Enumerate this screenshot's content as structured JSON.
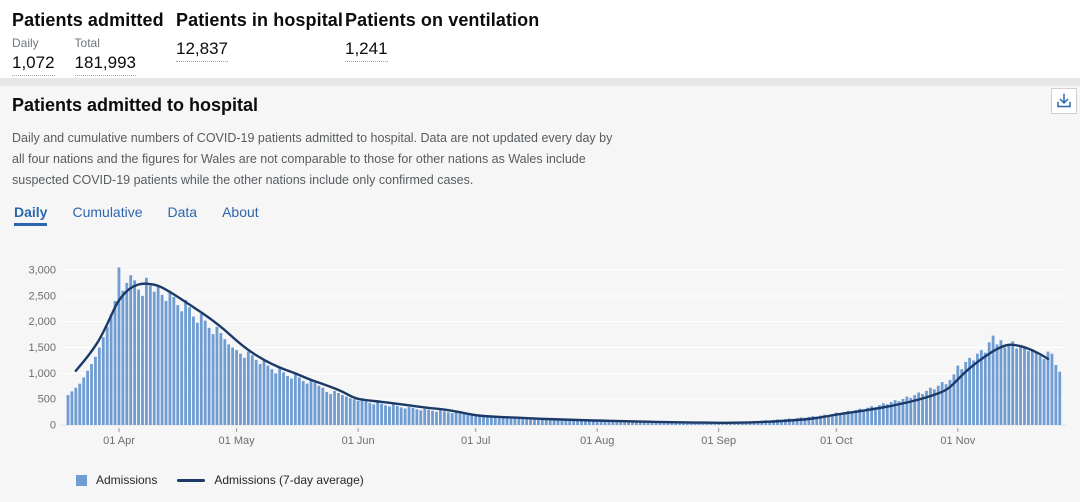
{
  "metrics": {
    "admitted": {
      "title": "Patients admitted",
      "daily_label": "Daily",
      "daily_value": "1,072",
      "total_label": "Total",
      "total_value": "181,993"
    },
    "in_hospital": {
      "title": "Patients in hospital",
      "value": "12,837"
    },
    "ventilation": {
      "title": "Patients on ventilation",
      "value": "1,241"
    }
  },
  "card": {
    "title": "Patients admitted to hospital",
    "description_lines": [
      "Daily and cumulative numbers of COVID-19 patients admitted to hospital. Data are not updated every day by",
      "all four nations and the figures for Wales are not comparable to those for other nations as Wales include",
      "suspected COVID-19 patients while the other nations include only confirmed cases."
    ],
    "tabs": {
      "daily": "Daily",
      "cumulative": "Cumulative",
      "data": "Data",
      "about": "About"
    },
    "download_icon": "download-icon"
  },
  "legend": {
    "admissions": "Admissions",
    "average": "Admissions (7-day average)"
  },
  "colors": {
    "accent_blue": "#2c66ad",
    "bar": "#6f9cd3",
    "line": "#1c3a67",
    "axis_text": "#6e6e6e",
    "grid": "#ffffff",
    "baseline": "#e3e3e4",
    "tick": "#9a9a9a"
  },
  "chart_data": {
    "type": "bar",
    "title": "Patients admitted to hospital (Daily)",
    "start_date": "2020-03-19",
    "end_date": "2020-11-27",
    "ylim": [
      0,
      3000
    ],
    "y_ticks": [
      0,
      500,
      1000,
      1500,
      2000,
      2500,
      3000
    ],
    "y_tick_labels": [
      "0",
      "500",
      "1,000",
      "1,500",
      "2,000",
      "2,500",
      "3,000"
    ],
    "x_ticks": [
      {
        "label": "01 Apr",
        "day": 13
      },
      {
        "label": "01 May",
        "day": 43
      },
      {
        "label": "01 Jun",
        "day": 74
      },
      {
        "label": "01 Jul",
        "day": 104
      },
      {
        "label": "01 Aug",
        "day": 135
      },
      {
        "label": "01 Sep",
        "day": 166
      },
      {
        "label": "01 Oct",
        "day": 196
      },
      {
        "label": "01 Nov",
        "day": 227
      }
    ],
    "series": [
      {
        "name": "Admissions",
        "type": "bar",
        "values": [
          580,
          650,
          720,
          800,
          920,
          1050,
          1180,
          1320,
          1500,
          1700,
          1900,
          2150,
          2400,
          3050,
          2600,
          2750,
          2900,
          2800,
          2620,
          2500,
          2850,
          2700,
          2580,
          2700,
          2520,
          2400,
          2600,
          2480,
          2320,
          2200,
          2420,
          2280,
          2100,
          1980,
          2150,
          2020,
          1880,
          1760,
          1900,
          1780,
          1660,
          1560,
          1500,
          1450,
          1380,
          1300,
          1420,
          1350,
          1260,
          1180,
          1250,
          1150,
          1080,
          1000,
          1100,
          1020,
          950,
          900,
          980,
          920,
          850,
          800,
          870,
          820,
          760,
          720,
          640,
          600,
          660,
          620,
          580,
          550,
          520,
          500,
          470,
          500,
          460,
          430,
          400,
          440,
          410,
          380,
          360,
          400,
          370,
          340,
          320,
          350,
          330,
          305,
          285,
          315,
          295,
          275,
          255,
          285,
          265,
          245,
          230,
          250,
          230,
          215,
          205,
          195,
          180,
          165,
          175,
          160,
          150,
          162,
          154,
          142,
          134,
          146,
          138,
          128,
          120,
          132,
          124,
          115,
          108,
          118,
          110,
          102,
          96,
          105,
          98,
          92,
          86,
          94,
          88,
          82,
          78,
          85,
          80,
          95,
          88,
          92,
          84,
          78,
          86,
          80,
          74,
          68,
          76,
          70,
          64,
          60,
          66,
          62,
          56,
          52,
          58,
          54,
          50,
          46,
          52,
          48,
          44,
          42,
          46,
          42,
          40,
          38,
          42,
          40,
          52,
          44,
          48,
          56,
          50,
          60,
          66,
          60,
          70,
          78,
          72,
          84,
          92,
          86,
          98,
          108,
          100,
          114,
          126,
          118,
          134,
          148,
          140,
          158,
          172,
          162,
          184,
          200,
          190,
          212,
          240,
          225,
          250,
          275,
          260,
          290,
          315,
          300,
          335,
          365,
          345,
          385,
          420,
          400,
          445,
          480,
          460,
          505,
          550,
          525,
          580,
          630,
          600,
          660,
          720,
          690,
          760,
          830,
          790,
          870,
          980,
          1150,
          1080,
          1220,
          1300,
          1250,
          1380,
          1450,
          1400,
          1600,
          1730,
          1560,
          1640,
          1500,
          1560,
          1620,
          1480,
          1550,
          1500,
          1430,
          1470,
          1400,
          1340,
          1280,
          1420,
          1380,
          1160,
          1030
        ]
      },
      {
        "name": "Admissions (7-day average)",
        "type": "line",
        "points": [
          [
            2,
            1050
          ],
          [
            4,
            1230
          ],
          [
            6,
            1420
          ],
          [
            8,
            1650
          ],
          [
            10,
            1950
          ],
          [
            12,
            2280
          ],
          [
            13,
            2420
          ],
          [
            15,
            2600
          ],
          [
            17,
            2700
          ],
          [
            19,
            2740
          ],
          [
            21,
            2730
          ],
          [
            23,
            2700
          ],
          [
            25,
            2620
          ],
          [
            27,
            2530
          ],
          [
            29,
            2430
          ],
          [
            31,
            2330
          ],
          [
            34,
            2180
          ],
          [
            37,
            2020
          ],
          [
            40,
            1840
          ],
          [
            43,
            1630
          ],
          [
            46,
            1450
          ],
          [
            49,
            1300
          ],
          [
            52,
            1180
          ],
          [
            55,
            1080
          ],
          [
            58,
            1000
          ],
          [
            61,
            900
          ],
          [
            64,
            820
          ],
          [
            67,
            740
          ],
          [
            70,
            650
          ],
          [
            73,
            520
          ],
          [
            76,
            480
          ],
          [
            80,
            450
          ],
          [
            84,
            410
          ],
          [
            88,
            370
          ],
          [
            92,
            330
          ],
          [
            96,
            300
          ],
          [
            100,
            250
          ],
          [
            104,
            185
          ],
          [
            108,
            165
          ],
          [
            112,
            150
          ],
          [
            116,
            136
          ],
          [
            120,
            123
          ],
          [
            124,
            111
          ],
          [
            128,
            101
          ],
          [
            132,
            92
          ],
          [
            136,
            84
          ],
          [
            140,
            77
          ],
          [
            144,
            70
          ],
          [
            148,
            63
          ],
          [
            152,
            57
          ],
          [
            156,
            52
          ],
          [
            160,
            47
          ],
          [
            164,
            44
          ],
          [
            168,
            43
          ],
          [
            172,
            46
          ],
          [
            176,
            55
          ],
          [
            180,
            68
          ],
          [
            184,
            85
          ],
          [
            188,
            108
          ],
          [
            192,
            145
          ],
          [
            196,
            205
          ],
          [
            200,
            245
          ],
          [
            204,
            290
          ],
          [
            208,
            340
          ],
          [
            212,
            400
          ],
          [
            216,
            470
          ],
          [
            220,
            555
          ],
          [
            224,
            670
          ],
          [
            226,
            800
          ],
          [
            228,
            960
          ],
          [
            230,
            1100
          ],
          [
            232,
            1220
          ],
          [
            234,
            1330
          ],
          [
            236,
            1430
          ],
          [
            238,
            1510
          ],
          [
            240,
            1560
          ],
          [
            242,
            1545
          ],
          [
            244,
            1505
          ],
          [
            246,
            1450
          ],
          [
            248,
            1370
          ],
          [
            250,
            1280
          ]
        ]
      }
    ]
  }
}
